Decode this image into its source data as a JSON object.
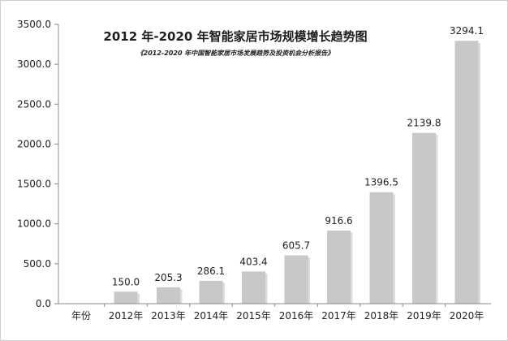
{
  "chart_data": {
    "type": "bar",
    "title": "2012 年-2020 年智能家居市场规模增长趋势图",
    "subtitle": "《2012-2020 年中国智能家居市场发展趋势及投资机会分析报告》",
    "xlabel": "年份",
    "ylabel": "",
    "categories": [
      "2012年",
      "2013年",
      "2014年",
      "2015年",
      "2016年",
      "2017年",
      "2018年",
      "2019年",
      "2020年"
    ],
    "values": [
      150.0,
      205.3,
      286.1,
      403.4,
      605.7,
      916.6,
      1396.5,
      2139.8,
      3294.1
    ],
    "value_labels": [
      "150.0",
      "205.3",
      "286.1",
      "403.4",
      "605.7",
      "916.6",
      "1396.5",
      "2139.8",
      "3294.1"
    ],
    "ylim": [
      0,
      3500
    ],
    "yticks": [
      0,
      500,
      1000,
      1500,
      2000,
      2500,
      3000,
      3500
    ],
    "ytick_labels": [
      "0.0",
      "500.0",
      "1000.0",
      "1500.0",
      "2000.0",
      "2500.0",
      "3000.0",
      "3500.0"
    ],
    "grid": false,
    "legend": "none",
    "colors": {
      "bar": "#c8c8c8",
      "bar_shadow": "#9a9a9a",
      "axis": "#8a8a8a",
      "text": "#222222"
    }
  }
}
